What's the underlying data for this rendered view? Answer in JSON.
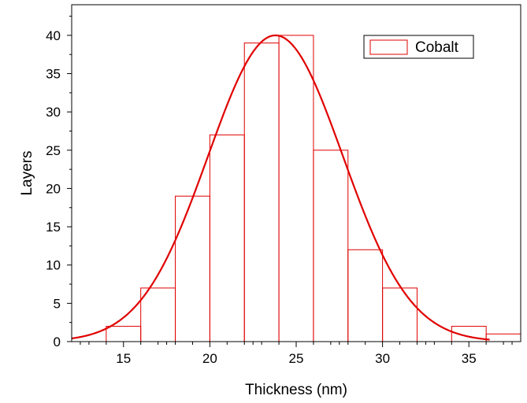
{
  "chart_data": {
    "type": "bar",
    "title": "",
    "xlabel": "Thickness (nm)",
    "ylabel": "Layers",
    "xlim": [
      12,
      38
    ],
    "ylim": [
      0,
      44
    ],
    "x_ticks": [
      15,
      20,
      25,
      30,
      35
    ],
    "y_ticks": [
      0,
      5,
      10,
      15,
      20,
      25,
      30,
      35,
      40
    ],
    "legend": {
      "label": "Cobalt",
      "placement": "top-right"
    },
    "bins": [
      {
        "x0": 14,
        "x1": 16,
        "value": 2
      },
      {
        "x0": 16,
        "x1": 18,
        "value": 7
      },
      {
        "x0": 18,
        "x1": 20,
        "value": 19
      },
      {
        "x0": 20,
        "x1": 22,
        "value": 27
      },
      {
        "x0": 22,
        "x1": 24,
        "value": 39
      },
      {
        "x0": 24,
        "x1": 26,
        "value": 40
      },
      {
        "x0": 26,
        "x1": 28,
        "value": 25
      },
      {
        "x0": 28,
        "x1": 30,
        "value": 12
      },
      {
        "x0": 30,
        "x1": 32,
        "value": 7
      },
      {
        "x0": 34,
        "x1": 36,
        "value": 2
      },
      {
        "x0": 36,
        "x1": 38,
        "value": 1
      }
    ],
    "fit_curve": {
      "type": "gaussian",
      "mean": 23.8,
      "sigma": 3.9,
      "peak": 40,
      "x_range": [
        12,
        36.2
      ]
    },
    "colors": {
      "bars": "#e00000",
      "curve": "#e00000",
      "axes": "#000000"
    },
    "grid": false
  }
}
